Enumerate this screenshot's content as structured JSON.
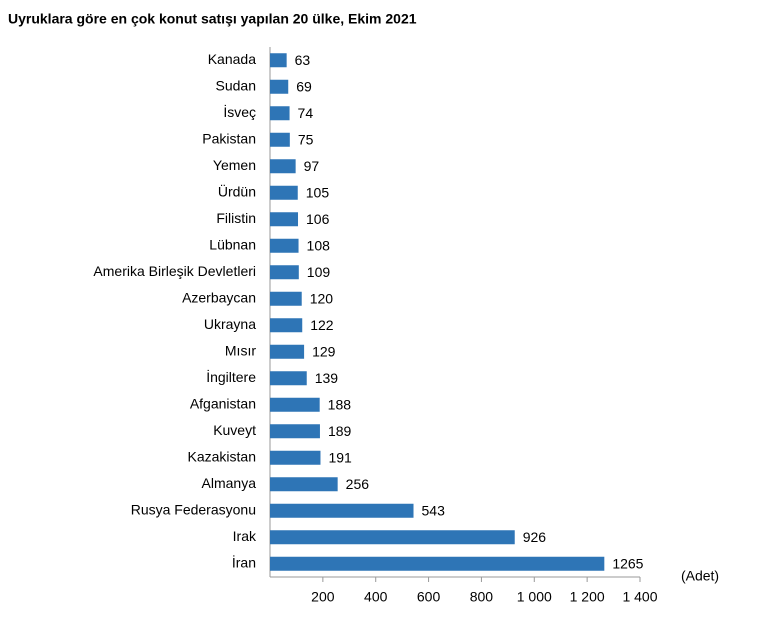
{
  "chart_data": {
    "type": "bar",
    "orientation": "horizontal",
    "title": "Uyruklara göre en çok konut satışı yapılan 20 ülke, Ekim 2021",
    "x_label": "(Adet)",
    "categories": [
      "Kanada",
      "Sudan",
      "İsveç",
      "Pakistan",
      "Yemen",
      "Ürdün",
      "Filistin",
      "Lübnan",
      "Amerika Birleşik Devletleri",
      "Azerbaycan",
      "Ukrayna",
      "Mısır",
      "İngiltere",
      "Afganistan",
      "Kuveyt",
      "Kazakistan",
      "Almanya",
      "Rusya Federasyonu",
      "Irak",
      "İran"
    ],
    "values": [
      63,
      69,
      74,
      75,
      97,
      105,
      106,
      108,
      109,
      120,
      122,
      129,
      139,
      188,
      189,
      191,
      256,
      543,
      926,
      1265
    ],
    "color": "#2e75b6",
    "xlim": [
      0,
      1400
    ],
    "xticks": [
      200,
      400,
      600,
      800,
      {
        "value": 1000,
        "label": "1 000"
      },
      {
        "value": 1200,
        "label": "1 200"
      },
      {
        "value": 1400,
        "label": "1 400"
      }
    ]
  }
}
